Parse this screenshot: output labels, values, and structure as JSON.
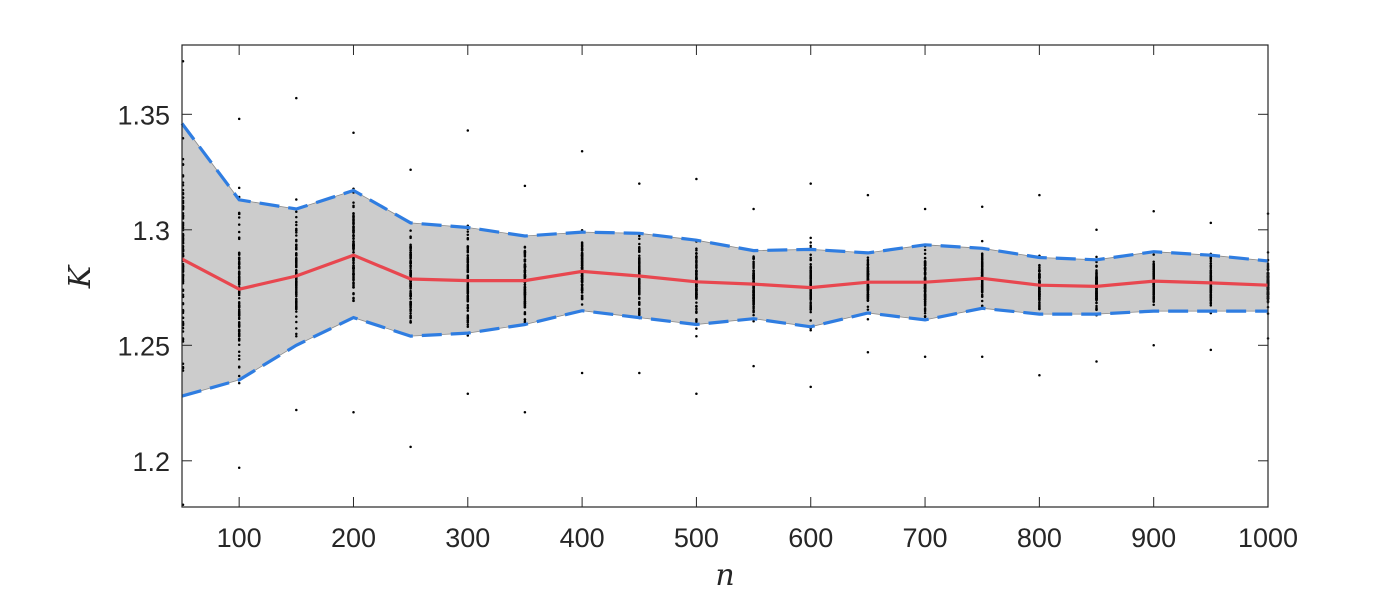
{
  "chart_data": {
    "type": "line",
    "title": "",
    "xlabel": "n",
    "ylabel": "K",
    "xlim": [
      50,
      1000
    ],
    "ylim": [
      1.18,
      1.38
    ],
    "x_ticks": [
      100,
      200,
      300,
      400,
      500,
      600,
      700,
      800,
      900,
      1000
    ],
    "x_tick_labels": [
      "100",
      "200",
      "300",
      "400",
      "500",
      "600",
      "700",
      "800",
      "900",
      "1000"
    ],
    "y_ticks": [
      1.2,
      1.25,
      1.3,
      1.35
    ],
    "y_tick_labels": [
      "1.2",
      "1.25",
      "1.3",
      "1.35"
    ],
    "grid": false,
    "legend": "none",
    "x": [
      50,
      100,
      150,
      200,
      250,
      300,
      350,
      400,
      450,
      500,
      550,
      600,
      650,
      700,
      750,
      800,
      850,
      900,
      950,
      1000
    ],
    "series": [
      {
        "role": "mean",
        "style": "solid",
        "color": "#e8474f",
        "values": [
          1.2873,
          1.2743,
          1.28,
          1.289,
          1.2787,
          1.278,
          1.278,
          1.282,
          1.28,
          1.2775,
          1.2765,
          1.275,
          1.2773,
          1.2773,
          1.279,
          1.276,
          1.2755,
          1.2778,
          1.277,
          1.276
        ]
      },
      {
        "role": "upper",
        "style": "dashed",
        "color": "#2f7de1",
        "values": [
          1.346,
          1.313,
          1.309,
          1.317,
          1.303,
          1.301,
          1.2973,
          1.299,
          1.2985,
          1.2955,
          1.291,
          1.2915,
          1.29,
          1.2935,
          1.292,
          1.288,
          1.287,
          1.2905,
          1.289,
          1.2865
        ]
      },
      {
        "role": "lower",
        "style": "dashed",
        "color": "#2f7de1",
        "values": [
          1.228,
          1.235,
          1.25,
          1.262,
          1.254,
          1.2553,
          1.259,
          1.265,
          1.262,
          1.259,
          1.2615,
          1.258,
          1.264,
          1.261,
          1.266,
          1.2635,
          1.2635,
          1.2648,
          1.2648,
          1.2648
        ]
      }
    ],
    "band": {
      "between": [
        "lower",
        "upper"
      ],
      "color": "#cccccc"
    },
    "scatter": {
      "color": "#000000",
      "x": [
        50,
        100,
        150,
        200,
        250,
        300,
        350,
        400,
        450,
        500,
        550,
        600,
        650,
        700,
        750,
        800,
        850,
        900,
        950,
        1000
      ],
      "min": [
        1.181,
        1.197,
        1.222,
        1.221,
        1.206,
        1.229,
        1.221,
        1.238,
        1.238,
        1.229,
        1.241,
        1.232,
        1.247,
        1.245,
        1.245,
        1.237,
        1.243,
        1.25,
        1.248,
        1.253
      ],
      "max": [
        1.373,
        1.348,
        1.357,
        1.342,
        1.326,
        1.343,
        1.319,
        1.334,
        1.32,
        1.322,
        1.309,
        1.32,
        1.315,
        1.309,
        1.31,
        1.315,
        1.3,
        1.308,
        1.303,
        1.307
      ]
    }
  }
}
